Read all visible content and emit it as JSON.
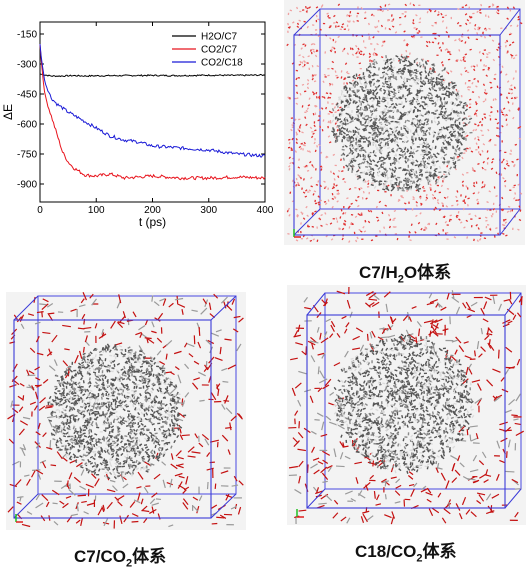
{
  "chart_data": {
    "type": "line",
    "xlabel": "t (ps)",
    "ylabel": "ΔE",
    "xlim": [
      0,
      400
    ],
    "ylim": [
      -990,
      -90
    ],
    "xticks": [
      0,
      100,
      200,
      300,
      400
    ],
    "yticks": [
      -150,
      -300,
      -450,
      -600,
      -750,
      -900
    ],
    "legend_position": "top-right",
    "series": [
      {
        "name": "H2O/C7",
        "color": "#000000",
        "x": [
          0,
          10,
          20,
          40,
          60,
          80,
          100,
          150,
          200,
          250,
          300,
          350,
          400
        ],
        "y": [
          -350,
          -355,
          -360,
          -360,
          -358,
          -360,
          -359,
          -358,
          -357,
          -358,
          -356,
          -357,
          -355
        ]
      },
      {
        "name": "CO2/C7",
        "color": "#e8141d",
        "x": [
          0,
          5,
          10,
          20,
          30,
          40,
          50,
          60,
          80,
          100,
          125,
          150,
          200,
          250,
          300,
          350,
          400
        ],
        "y": [
          -200,
          -370,
          -470,
          -560,
          -650,
          -740,
          -790,
          -820,
          -855,
          -860,
          -850,
          -870,
          -860,
          -870,
          -870,
          -865,
          -870
        ]
      },
      {
        "name": "CO2/C18",
        "color": "#1a1ad6",
        "x": [
          0,
          5,
          10,
          20,
          30,
          50,
          75,
          100,
          125,
          150,
          175,
          200,
          250,
          300,
          350,
          400
        ],
        "y": [
          -200,
          -330,
          -400,
          -470,
          -500,
          -540,
          -580,
          -620,
          -660,
          -680,
          -690,
          -710,
          -720,
          -730,
          -750,
          -760
        ]
      }
    ]
  },
  "captions": {
    "c7_h2o": {
      "pre": "C7/H",
      "sub": "2",
      "post": "O体系"
    },
    "c7_co2": {
      "pre": "C7/CO",
      "sub": "2",
      "post": "体系"
    },
    "c18_co2": {
      "pre": "C18/CO",
      "sub": "2",
      "post": "体系"
    }
  },
  "simulation_panels": [
    {
      "id": "c7_h2o",
      "solvent": "H2O",
      "solvent_color": "#e03030"
    },
    {
      "id": "c7_co2",
      "solvent": "CO2",
      "solvent_color": "#c41010"
    },
    {
      "id": "c18_co2",
      "solvent": "CO2",
      "solvent_color": "#c41010"
    }
  ]
}
